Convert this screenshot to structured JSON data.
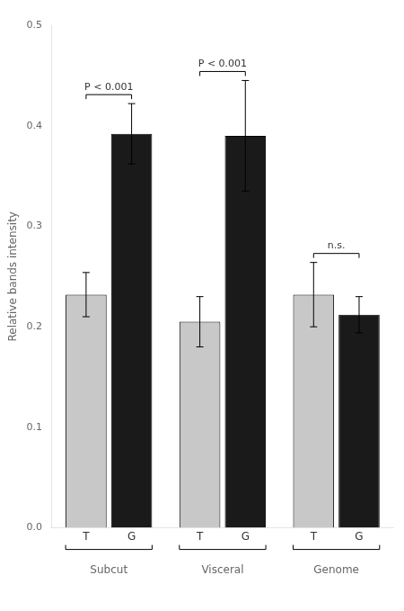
{
  "chart_data": {
    "type": "bar",
    "categories": [
      "Subcut",
      "Visceral",
      "Genome"
    ],
    "series": [
      {
        "name": "T",
        "color": "#c8c8c8",
        "values": [
          0.232,
          0.205,
          0.232
        ],
        "errors": [
          0.022,
          0.025,
          0.032
        ]
      },
      {
        "name": "G",
        "color": "#1a1a1a",
        "values": [
          0.392,
          0.39,
          0.212
        ],
        "errors": [
          0.03,
          0.055,
          0.018
        ]
      }
    ],
    "annotations": [
      "P < 0.001",
      "P < 0.001",
      "n.s."
    ],
    "y_label": "Relative bands intensity",
    "ylim": [
      0,
      0.5
    ],
    "yticks": [
      {
        "value": 0,
        "label": "0.0"
      },
      {
        "value": 0.1,
        "label": "0.1"
      },
      {
        "value": 0.2,
        "label": "0.2"
      },
      {
        "value": 0.3,
        "label": "0.3"
      },
      {
        "value": 0.4,
        "label": "0.4"
      },
      {
        "value": 0.5,
        "label": "0.5"
      }
    ],
    "grid": false
  }
}
